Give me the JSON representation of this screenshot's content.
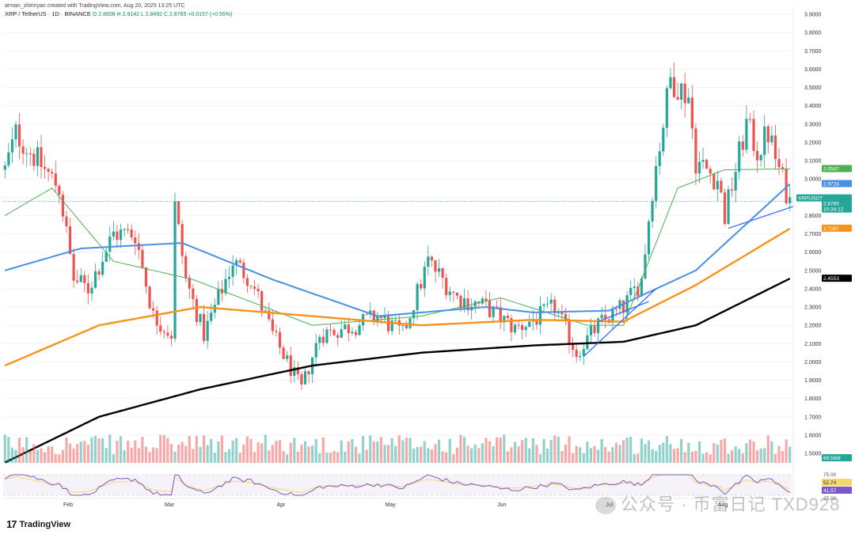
{
  "header": {
    "line1": "arman_shirinyan created with TradingView.com, Aug 20, 2025 13:25 UTC",
    "symbol": "XRP / TetherUS · 1D · BINANCE",
    "ohlc": "O 2.8608 H 2.9142 L 2.8492 C 2.8765 +0.0157 (+0.55%)"
  },
  "brand": {
    "logo_text": "TradingView",
    "logo_mark": "17"
  },
  "watermark": {
    "text": "公众号 · 币富日记 TXD928"
  },
  "colors": {
    "up": "#26a69a",
    "down": "#ef5350",
    "ma20": "#4caf50",
    "ma50": "#4a90e2",
    "ma100": "#f7931a",
    "ma200": "#000000",
    "rsi": "#7e57c2"
  },
  "chart_data": {
    "type": "candlestick",
    "x_range": [
      "2025-01-15",
      "2025-08-20"
    ],
    "xticks": [
      "Feb",
      "Mar",
      "Apr",
      "May",
      "Jun",
      "Jul",
      "Aug"
    ],
    "ylim": [
      1.5,
      3.9
    ],
    "yticks": [
      "3.9000",
      "3.8000",
      "3.7000",
      "3.6000",
      "3.5000",
      "3.4000",
      "3.3000",
      "3.2000",
      "3.1000",
      "3.0000",
      "2.9000",
      "2.8000",
      "2.7000",
      "2.6000",
      "2.5000",
      "2.4000",
      "2.3000",
      "2.2000",
      "2.1000",
      "2.0000",
      "1.9000",
      "1.8000",
      "1.7000",
      "1.6000",
      "1.5000"
    ],
    "anchors": [
      {
        "date": "2025-01-15",
        "price": 3.05
      },
      {
        "date": "2025-01-18",
        "price": 3.25
      },
      {
        "date": "2025-01-24",
        "price": 3.1
      },
      {
        "date": "2025-01-30",
        "price": 2.95
      },
      {
        "date": "2025-02-03",
        "price": 2.45
      },
      {
        "date": "2025-02-07",
        "price": 2.4
      },
      {
        "date": "2025-02-14",
        "price": 2.7
      },
      {
        "date": "2025-02-20",
        "price": 2.7
      },
      {
        "date": "2025-02-25",
        "price": 2.25
      },
      {
        "date": "2025-03-02",
        "price": 2.15
      },
      {
        "date": "2025-03-03",
        "price": 2.85
      },
      {
        "date": "2025-03-06",
        "price": 2.45
      },
      {
        "date": "2025-03-11",
        "price": 2.15
      },
      {
        "date": "2025-03-19",
        "price": 2.55
      },
      {
        "date": "2025-03-24",
        "price": 2.45
      },
      {
        "date": "2025-03-30",
        "price": 2.15
      },
      {
        "date": "2025-04-07",
        "price": 1.85
      },
      {
        "date": "2025-04-12",
        "price": 2.15
      },
      {
        "date": "2025-04-22",
        "price": 2.2
      },
      {
        "date": "2025-04-28",
        "price": 2.25
      },
      {
        "date": "2025-05-05",
        "price": 2.15
      },
      {
        "date": "2025-05-12",
        "price": 2.55
      },
      {
        "date": "2025-05-20",
        "price": 2.35
      },
      {
        "date": "2025-05-28",
        "price": 2.3
      },
      {
        "date": "2025-06-05",
        "price": 2.18
      },
      {
        "date": "2025-06-12",
        "price": 2.25
      },
      {
        "date": "2025-06-16",
        "price": 2.3
      },
      {
        "date": "2025-06-22",
        "price": 2.05
      },
      {
        "date": "2025-06-28",
        "price": 2.2
      },
      {
        "date": "2025-07-05",
        "price": 2.3
      },
      {
        "date": "2025-07-10",
        "price": 2.45
      },
      {
        "date": "2025-07-13",
        "price": 2.95
      },
      {
        "date": "2025-07-18",
        "price": 3.55
      },
      {
        "date": "2025-07-23",
        "price": 3.45
      },
      {
        "date": "2025-07-25",
        "price": 3.1
      },
      {
        "date": "2025-07-31",
        "price": 3.0
      },
      {
        "date": "2025-08-02",
        "price": 2.8
      },
      {
        "date": "2025-08-08",
        "price": 3.3
      },
      {
        "date": "2025-08-11",
        "price": 3.15
      },
      {
        "date": "2025-08-14",
        "price": 3.25
      },
      {
        "date": "2025-08-17",
        "price": 3.05
      },
      {
        "date": "2025-08-20",
        "price": 2.8765
      }
    ],
    "ma_anchors": {
      "ma20": [
        {
          "date": "2025-01-15",
          "v": 2.8
        },
        {
          "date": "2025-01-28",
          "v": 2.95
        },
        {
          "date": "2025-02-14",
          "v": 2.55
        },
        {
          "date": "2025-03-08",
          "v": 2.45
        },
        {
          "date": "2025-04-10",
          "v": 2.2
        },
        {
          "date": "2025-05-10",
          "v": 2.25
        },
        {
          "date": "2025-06-01",
          "v": 2.35
        },
        {
          "date": "2025-06-25",
          "v": 2.2
        },
        {
          "date": "2025-07-05",
          "v": 2.2
        },
        {
          "date": "2025-07-20",
          "v": 2.95
        },
        {
          "date": "2025-08-02",
          "v": 3.05
        },
        {
          "date": "2025-08-20",
          "v": 3.0547
        }
      ],
      "ma50": [
        {
          "date": "2025-01-15",
          "v": 2.5
        },
        {
          "date": "2025-02-05",
          "v": 2.62
        },
        {
          "date": "2025-03-05",
          "v": 2.65
        },
        {
          "date": "2025-03-30",
          "v": 2.45
        },
        {
          "date": "2025-04-28",
          "v": 2.25
        },
        {
          "date": "2025-05-28",
          "v": 2.3
        },
        {
          "date": "2025-06-10",
          "v": 2.27
        },
        {
          "date": "2025-07-01",
          "v": 2.28
        },
        {
          "date": "2025-07-25",
          "v": 2.5
        },
        {
          "date": "2025-08-20",
          "v": 2.9724
        }
      ],
      "ma100": [
        {
          "date": "2025-01-15",
          "v": 1.98
        },
        {
          "date": "2025-02-10",
          "v": 2.2
        },
        {
          "date": "2025-03-10",
          "v": 2.3
        },
        {
          "date": "2025-04-10",
          "v": 2.25
        },
        {
          "date": "2025-05-10",
          "v": 2.2
        },
        {
          "date": "2025-06-10",
          "v": 2.23
        },
        {
          "date": "2025-07-05",
          "v": 2.22
        },
        {
          "date": "2025-07-25",
          "v": 2.42
        },
        {
          "date": "2025-08-20",
          "v": 2.7287
        }
      ],
      "ma200": [
        {
          "date": "2025-01-15",
          "v": 1.45
        },
        {
          "date": "2025-02-10",
          "v": 1.7
        },
        {
          "date": "2025-03-10",
          "v": 1.85
        },
        {
          "date": "2025-04-10",
          "v": 1.98
        },
        {
          "date": "2025-05-10",
          "v": 2.05
        },
        {
          "date": "2025-06-10",
          "v": 2.09
        },
        {
          "date": "2025-07-05",
          "v": 2.11
        },
        {
          "date": "2025-07-25",
          "v": 2.2
        },
        {
          "date": "2025-08-20",
          "v": 2.4553
        }
      ]
    },
    "trendlines": [
      {
        "from": {
          "date": "2025-06-24",
          "v": 2.03
        },
        "to": {
          "date": "2025-07-14",
          "v": 2.4
        }
      },
      {
        "from": {
          "date": "2025-06-28",
          "v": 2.22
        },
        "to": {
          "date": "2025-07-12",
          "v": 2.33
        }
      },
      {
        "from": {
          "date": "2025-08-03",
          "v": 2.73
        },
        "to": {
          "date": "2025-08-21",
          "v": 2.85
        }
      }
    ],
    "price_labels": [
      {
        "text": "3.0547",
        "value": 3.0547,
        "color": "#4caf50"
      },
      {
        "text": "2.9724",
        "value": 2.9724,
        "color": "#4a90e2"
      },
      {
        "text": "XRPUSDT",
        "value": 2.8765,
        "color": "#26a69a"
      },
      {
        "text": "2.8765",
        "value": 2.8765,
        "color": "#26a69a"
      },
      {
        "text": "10:34:12",
        "value": 2.8765,
        "color": "#26a69a"
      },
      {
        "text": "2.7287",
        "value": 2.7287,
        "color": "#f7931a"
      },
      {
        "text": "2.4553",
        "value": 2.4553,
        "color": "#000000"
      }
    ],
    "volume_label": "69.56M",
    "rsi": {
      "levels": [
        "75.00",
        "25.00"
      ],
      "values": [
        {
          "text": "52.74",
          "color": "#f5d76e"
        },
        {
          "text": "41.57",
          "color": "#7e57c2"
        }
      ]
    }
  }
}
